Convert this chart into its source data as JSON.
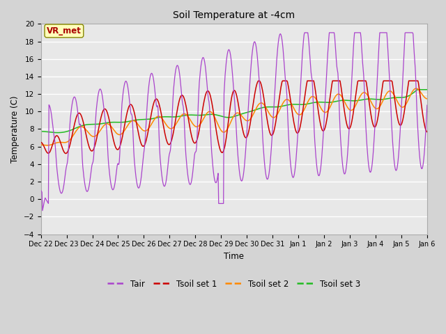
{
  "title": "Soil Temperature at -4cm",
  "xlabel": "Time",
  "ylabel": "Temperature (C)",
  "ylim": [
    -4,
    20
  ],
  "yticks": [
    -4,
    -2,
    0,
    2,
    4,
    6,
    8,
    10,
    12,
    14,
    16,
    18,
    20
  ],
  "fig_bg_color": "#d4d4d4",
  "plot_bg_color": "#e8e8e8",
  "line_colors": {
    "Tair": "#aa44cc",
    "Tsoil1": "#cc0000",
    "Tsoil2": "#ff8800",
    "Tsoil3": "#22bb22"
  },
  "legend_labels": [
    "Tair",
    "Tsoil set 1",
    "Tsoil set 2",
    "Tsoil set 3"
  ],
  "annotation_text": "VR_met",
  "annotation_color": "#aa0000",
  "annotation_bg": "#ffffbb",
  "annotation_border": "#888800",
  "tick_labels": [
    "Dec 22",
    "Dec 23",
    "Dec 24",
    "Dec 25",
    "Dec 26",
    "Dec 27",
    "Dec 28",
    "Dec 29",
    "Dec 30",
    "Dec 31",
    "Jan 1",
    "Jan 2",
    "Jan 3",
    "Jan 4",
    "Jan 5",
    "Jan 6"
  ]
}
